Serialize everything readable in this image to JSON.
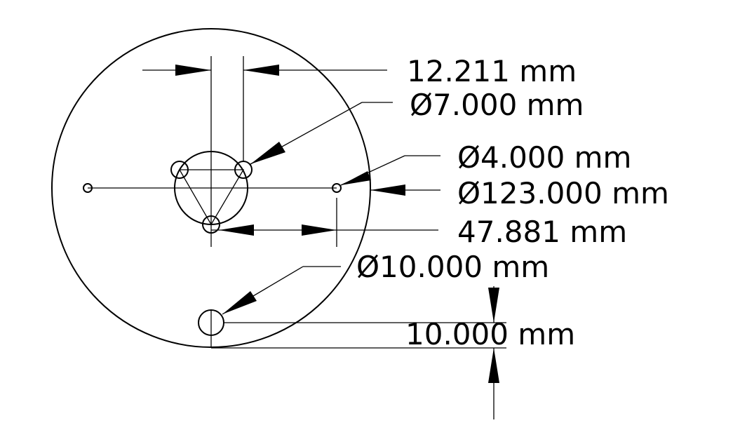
{
  "dimensions": {
    "hole_spacing": "12.211 mm",
    "small_hole_diameter": "Ø7.000 mm",
    "side_hole_diameter": "Ø4.000 mm",
    "outer_diameter": "Ø123.000 mm",
    "center_offset": "47.881 mm",
    "bottom_hole_diameter": "Ø10.000 mm",
    "edge_offset": "10.000 mm"
  },
  "colors": {
    "line": "#000000",
    "background": "#ffffff"
  }
}
